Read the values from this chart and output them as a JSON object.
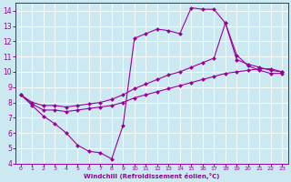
{
  "background_color": "#cce8f0",
  "grid_color": "#ffffff",
  "line_color": "#990099",
  "marker_color": "#990099",
  "xlabel": "Windchill (Refroidissement éolien,°C)",
  "xlabel_color": "#990099",
  "tick_color": "#990099",
  "xlim": [
    -0.5,
    23.5
  ],
  "ylim": [
    4,
    14.5
  ],
  "xticks": [
    0,
    1,
    2,
    3,
    4,
    5,
    6,
    7,
    8,
    9,
    10,
    11,
    12,
    13,
    14,
    15,
    16,
    17,
    18,
    19,
    20,
    21,
    22,
    23
  ],
  "yticks": [
    4,
    5,
    6,
    7,
    8,
    9,
    10,
    11,
    12,
    13,
    14
  ],
  "curve1_x": [
    0,
    1,
    2,
    3,
    4,
    5,
    6,
    7,
    8,
    9,
    10,
    11,
    12,
    13,
    14,
    15,
    16,
    17,
    18,
    19,
    20,
    21,
    22,
    23
  ],
  "curve1_y": [
    8.5,
    7.8,
    7.1,
    6.6,
    6.0,
    5.2,
    4.8,
    4.7,
    4.3,
    6.5,
    12.2,
    12.5,
    12.8,
    12.7,
    12.5,
    14.2,
    14.1,
    14.1,
    13.2,
    11.1,
    10.4,
    10.1,
    9.9,
    9.9
  ],
  "curve2_x": [
    0,
    1,
    2,
    3,
    4,
    5,
    6,
    7,
    8,
    9,
    10,
    11,
    12,
    13,
    14,
    15,
    16,
    17,
    18,
    19,
    20,
    21,
    22,
    23
  ],
  "curve2_y": [
    8.5,
    7.9,
    7.5,
    7.5,
    7.4,
    7.5,
    7.6,
    7.7,
    7.8,
    8.0,
    8.3,
    8.5,
    8.7,
    8.9,
    9.1,
    9.3,
    9.5,
    9.7,
    9.9,
    10.0,
    10.1,
    10.2,
    10.2,
    10.0
  ],
  "curve3_x": [
    0,
    1,
    2,
    3,
    4,
    5,
    6,
    7,
    8,
    9,
    10,
    11,
    12,
    13,
    14,
    15,
    16,
    17,
    18,
    19,
    20,
    21,
    22,
    23
  ],
  "curve3_y": [
    8.5,
    8.0,
    7.8,
    7.8,
    7.7,
    7.8,
    7.9,
    8.0,
    8.2,
    8.5,
    8.9,
    9.2,
    9.5,
    9.8,
    10.0,
    10.3,
    10.6,
    10.9,
    13.2,
    10.8,
    10.5,
    10.3,
    10.1,
    10.0
  ]
}
